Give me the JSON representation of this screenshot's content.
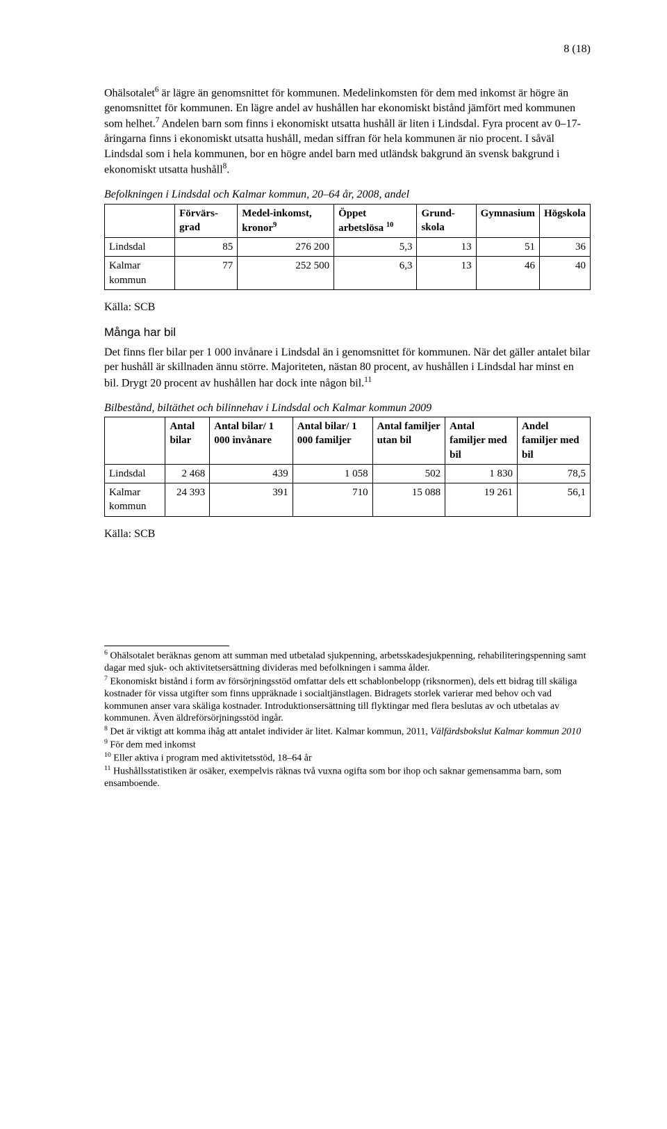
{
  "page_number": "8 (18)",
  "intro": {
    "p1a": "Ohälsotalet",
    "p1b": " är lägre än genomsnittet för kommunen. Medelinkomsten för dem med inkomst är högre än genomsnittet för kommunen. En lägre andel av hushållen har ekonomiskt bistånd jämfört med kommunen som helhet.",
    "p1c": " Andelen barn som finns i ekonomiskt utsatta hushåll är liten i Lindsdal. Fyra procent av 0–17-åringarna finns i ekonomiskt utsatta hushåll, medan siffran för hela kommunen är nio procent. I såväl Lindsdal som i hela kommunen, bor en högre andel barn med utländsk bakgrund än svensk bakgrund i ekonomiskt utsatta hushåll",
    "p1d": "."
  },
  "table1": {
    "caption": "Befolkningen i Lindsdal och Kalmar kommun, 20–64 år, 2008, andel",
    "headers": {
      "c0": "",
      "c1": "Förvärs-grad",
      "c2a": "Medel-inkomst, kronor",
      "c3a": "Öppet arbetslösa ",
      "c4": "Grund-skola",
      "c5": "Gymnasium",
      "c6": "Högskola"
    },
    "rows": [
      {
        "label": "Lindsdal",
        "v1": "85",
        "v2": "276 200",
        "v3": "5,3",
        "v4": "13",
        "v5": "51",
        "v6": "36"
      },
      {
        "label": "Kalmar kommun",
        "v1": "77",
        "v2": "252 500",
        "v3": "6,3",
        "v4": "13",
        "v5": "46",
        "v6": "40"
      }
    ],
    "source": "Källa: SCB"
  },
  "section2": {
    "title": "Många har bil",
    "p1a": "Det finns fler bilar per 1 000 invånare i Lindsdal än i genomsnittet för kommunen. När det gäller antalet bilar per hushåll är skillnaden ännu större. Majoriteten, nästan 80 procent, av hushållen i Lindsdal har minst en bil. Drygt 20 procent av hushållen har dock inte någon bil."
  },
  "table2": {
    "caption": "Bilbestånd, biltäthet och bilinnehav i Lindsdal och Kalmar kommun 2009",
    "headers": {
      "c0": "",
      "c1": "Antal bilar",
      "c2": "Antal bilar/ 1 000 invånare",
      "c3": "Antal bilar/ 1 000 familjer",
      "c4": "Antal familjer utan bil",
      "c5": "Antal familjer med bil",
      "c6": "Andel familjer med bil"
    },
    "rows": [
      {
        "label": "Lindsdal",
        "v1": "2 468",
        "v2": "439",
        "v3": "1 058",
        "v4": "502",
        "v5": "1 830",
        "v6": "78,5"
      },
      {
        "label": "Kalmar kommun",
        "v1": "24 393",
        "v2": "391",
        "v3": "710",
        "v4": "15 088",
        "v5": "19 261",
        "v6": "56,1"
      }
    ],
    "source": "Källa: SCB"
  },
  "footnotes": {
    "f6": " Ohälsotalet beräknas genom att summan med utbetalad sjukpenning, arbetsskadesjukpenning, rehabiliteringspenning samt dagar med sjuk- och aktivitetsersättning divideras med befolkningen i samma ålder.",
    "f7": " Ekonomiskt bistånd i form av försörjningsstöd omfattar dels ett schablonbelopp (riksnormen), dels ett bidrag till skäliga kostnader för vissa utgifter som finns uppräknade i socialtjänstlagen. Bidragets storlek varierar med behov och vad kommunen anser vara skäliga kostnader. Introduktionsersättning till flyktingar med flera beslutas av och utbetalas av kommunen. Även äldreförsörjningsstöd ingår.",
    "f8a": " Det är viktigt att komma ihåg att antalet individer är litet. Kalmar kommun, 2011, ",
    "f8b": "Välfärdsbokslut Kalmar kommun 2010",
    "f9": " För dem med inkomst",
    "f10": " Eller aktiva i program med aktivitetsstöd, 18–64 år",
    "f11": " Hushållsstatistiken är osäker, exempelvis räknas två vuxna ogifta som bor ihop och saknar gemensamma barn, som ensamboende."
  },
  "sup": {
    "s6": "6",
    "s7": "7",
    "s8": "8",
    "s9": "9",
    "s10": "10",
    "s11": "11"
  }
}
